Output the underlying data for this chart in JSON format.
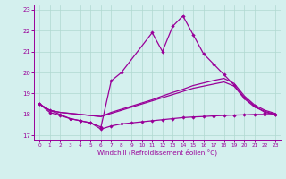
{
  "xlabel": "Windchill (Refroidissement éolien,°C)",
  "bg_color": "#d4f0ee",
  "grid_color": "#b0d8d0",
  "line_color": "#990099",
  "x_ticks": [
    0,
    1,
    2,
    3,
    4,
    5,
    6,
    7,
    8,
    9,
    10,
    11,
    12,
    13,
    14,
    15,
    16,
    17,
    18,
    19,
    20,
    21,
    22,
    23
  ],
  "y_ticks": [
    17,
    18,
    19,
    20,
    21,
    22,
    23
  ],
  "xlim": [
    -0.5,
    23.5
  ],
  "ylim": [
    16.8,
    23.2
  ],
  "line1_x": [
    0,
    1,
    2,
    3,
    4,
    5,
    6,
    7,
    8,
    11,
    12,
    13,
    14,
    15,
    16,
    17,
    18,
    19,
    20,
    21,
    22,
    23
  ],
  "line1_y": [
    18.5,
    18.2,
    18.0,
    17.8,
    17.7,
    17.6,
    17.4,
    19.6,
    20.0,
    21.9,
    21.0,
    22.2,
    22.7,
    21.8,
    20.9,
    20.4,
    19.9,
    19.4,
    18.8,
    18.4,
    18.1,
    18.0
  ],
  "line2_x": [
    0,
    1,
    2,
    3,
    4,
    5,
    6,
    7,
    8,
    9,
    10,
    11,
    12,
    13,
    14,
    15,
    16,
    17,
    18,
    19,
    20,
    21,
    22,
    23
  ],
  "line2_y": [
    18.5,
    18.1,
    17.95,
    17.8,
    17.7,
    17.6,
    17.3,
    17.45,
    17.55,
    17.6,
    17.65,
    17.7,
    17.75,
    17.8,
    17.85,
    17.88,
    17.9,
    17.93,
    17.95,
    17.97,
    17.98,
    18.0,
    18.0,
    18.0
  ],
  "line3_x": [
    0,
    1,
    2,
    3,
    4,
    5,
    6,
    7,
    8,
    9,
    10,
    11,
    12,
    13,
    14,
    15,
    16,
    17,
    18,
    19,
    20,
    21,
    22,
    23
  ],
  "line3_y": [
    18.5,
    18.2,
    18.1,
    18.05,
    18.0,
    17.95,
    17.9,
    18.05,
    18.2,
    18.35,
    18.5,
    18.65,
    18.8,
    18.95,
    19.1,
    19.25,
    19.35,
    19.45,
    19.55,
    19.35,
    18.75,
    18.35,
    18.15,
    18.0
  ],
  "line4_x": [
    0,
    1,
    2,
    3,
    4,
    5,
    6,
    7,
    8,
    9,
    10,
    11,
    12,
    13,
    14,
    15,
    16,
    17,
    18,
    19,
    20,
    21,
    22,
    23
  ],
  "line4_y": [
    18.5,
    18.2,
    18.1,
    18.05,
    18.0,
    17.95,
    17.9,
    18.1,
    18.25,
    18.4,
    18.55,
    18.7,
    18.88,
    19.05,
    19.2,
    19.38,
    19.5,
    19.62,
    19.72,
    19.48,
    18.88,
    18.45,
    18.2,
    18.05
  ]
}
